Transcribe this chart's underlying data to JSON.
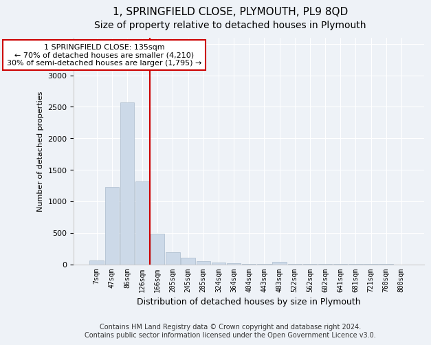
{
  "title": "1, SPRINGFIELD CLOSE, PLYMOUTH, PL9 8QD",
  "subtitle": "Size of property relative to detached houses in Plymouth",
  "xlabel": "Distribution of detached houses by size in Plymouth",
  "ylabel": "Number of detached properties",
  "bar_color": "#ccd9e8",
  "bar_edgecolor": "#aabbcc",
  "vline_color": "#cc0000",
  "annotation_text": "1 SPRINGFIELD CLOSE: 135sqm\n← 70% of detached houses are smaller (4,210)\n30% of semi-detached houses are larger (1,795) →",
  "annotation_box_color": "white",
  "annotation_box_edgecolor": "#cc0000",
  "categories": [
    "7sqm",
    "47sqm",
    "86sqm",
    "126sqm",
    "166sqm",
    "205sqm",
    "245sqm",
    "285sqm",
    "324sqm",
    "364sqm",
    "404sqm",
    "443sqm",
    "483sqm",
    "522sqm",
    "562sqm",
    "602sqm",
    "641sqm",
    "681sqm",
    "721sqm",
    "760sqm",
    "800sqm"
  ],
  "bar_heights": [
    55,
    1230,
    2570,
    1320,
    490,
    195,
    100,
    50,
    28,
    15,
    10,
    8,
    35,
    4,
    3,
    2,
    2,
    1,
    1,
    1,
    0
  ],
  "vline_bin_index": 3,
  "ylim": [
    0,
    3600
  ],
  "yticks": [
    0,
    500,
    1000,
    1500,
    2000,
    2500,
    3000,
    3500
  ],
  "background_color": "#eef2f7",
  "plot_bg_color": "#eef2f7",
  "footer_text": "Contains HM Land Registry data © Crown copyright and database right 2024.\nContains public sector information licensed under the Open Government Licence v3.0.",
  "title_fontsize": 11,
  "subtitle_fontsize": 10,
  "footer_fontsize": 7
}
